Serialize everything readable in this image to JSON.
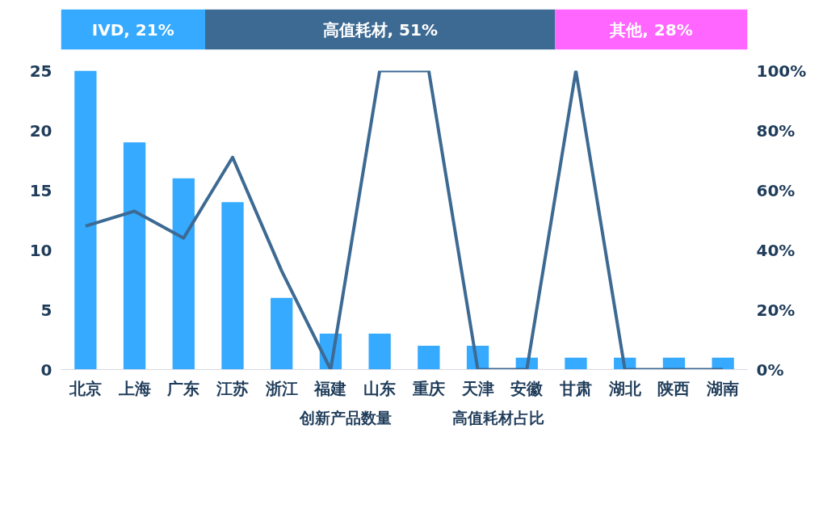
{
  "chart_data": [
    {
      "type": "bar",
      "orientation": "horizontal",
      "stacked": true,
      "categories": [
        null
      ],
      "tick_labels": false,
      "grid": false,
      "series": [
        {
          "color": "#35aaff",
          "values": [
            21
          ],
          "value_labels": [
            "IVD, 21%"
          ]
        },
        {
          "color": "#3d6a93",
          "values": [
            51
          ],
          "value_labels": [
            "高值耗材, 51%"
          ]
        },
        {
          "color": "#ff66ff",
          "values": [
            28
          ],
          "value_labels": [
            "其他, 28%"
          ]
        }
      ]
    },
    {
      "type": "bar",
      "categories": [
        "北京",
        "上海",
        "广东",
        "江苏",
        "浙江",
        "福建",
        "山东",
        "重庆",
        "天津",
        "安徽",
        "甘肃",
        "湖北",
        "陕西",
        "湖南"
      ],
      "ylim": [
        0,
        25
      ],
      "yticks": [
        0,
        5,
        10,
        15,
        20,
        25
      ],
      "y2lim": [
        0,
        100
      ],
      "y2ticks": [
        {
          "value": 0,
          "label": "0%"
        },
        {
          "value": 20,
          "label": "20%"
        },
        {
          "value": 40,
          "label": "40%"
        },
        {
          "value": 60,
          "label": "60%"
        },
        {
          "value": 80,
          "label": "80%"
        },
        {
          "value": 100,
          "label": "100%"
        }
      ],
      "grid": false,
      "legend": "bottom",
      "series": [
        {
          "name": "创新产品数量",
          "color": "#35aaff",
          "values": [
            25,
            19,
            16,
            14,
            6,
            3,
            3,
            2,
            2,
            1,
            1,
            1,
            1,
            1
          ]
        },
        {
          "name": "高值耗材占比",
          "type": "line",
          "axis": "y2",
          "color": "#3d6a93",
          "line_style": "solid",
          "marker": "none",
          "values": [
            48,
            53,
            44,
            71,
            33,
            0,
            100,
            100,
            0,
            0,
            100,
            0,
            0,
            0
          ]
        }
      ]
    }
  ]
}
